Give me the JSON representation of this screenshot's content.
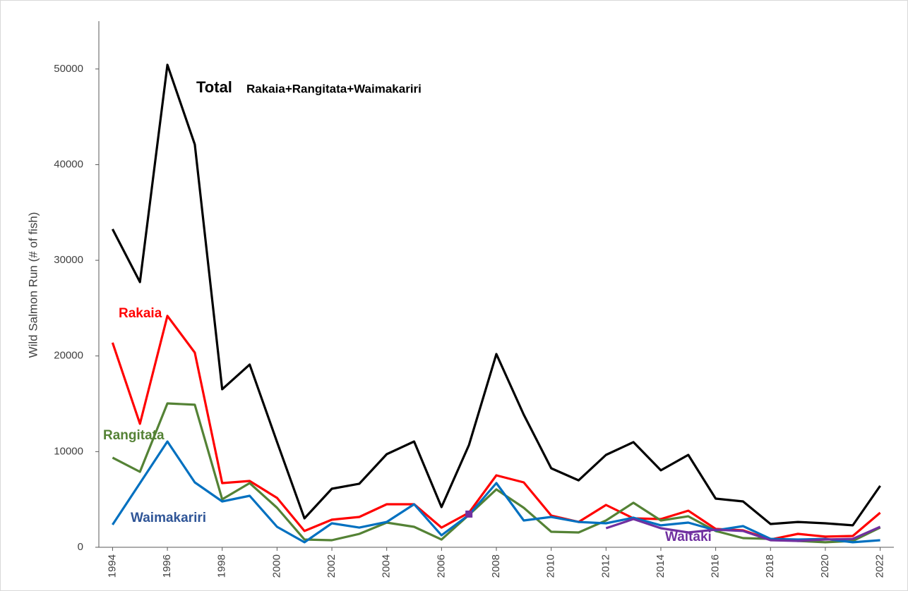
{
  "chart_data": {
    "type": "line",
    "y_label": "Wild Salmon Run (# of fish)",
    "annotations": [
      "Rakaia+Rangitata+Waimakariri"
    ],
    "x": [
      1994,
      1995,
      1996,
      1997,
      1998,
      1999,
      2000,
      2001,
      2002,
      2003,
      2004,
      2005,
      2006,
      2007,
      2008,
      2009,
      2010,
      2011,
      2012,
      2013,
      2014,
      2015,
      2016,
      2017,
      2018,
      2019,
      2020,
      2021,
      2022
    ],
    "xlim": [
      1993.5,
      2022.5
    ],
    "xticks": [
      1994,
      1996,
      1998,
      2000,
      2002,
      2004,
      2006,
      2008,
      2010,
      2012,
      2014,
      2016,
      2018,
      2020,
      2022
    ],
    "ylim": [
      0,
      55000
    ],
    "yticks": [
      0,
      10000,
      20000,
      30000,
      40000,
      50000
    ],
    "grid": false,
    "series": [
      {
        "name": "Total",
        "color": "#000000",
        "values": [
          33260,
          27730,
          50440,
          42110,
          16520,
          19100,
          11000,
          3020,
          6120,
          6640,
          9730,
          11060,
          4200,
          10690,
          20200,
          13860,
          8260,
          7000,
          9660,
          10990,
          8040,
          9660,
          5090,
          4790,
          2430,
          2650,
          2510,
          2290,
          6420
        ]
      },
      {
        "name": "Rakaia",
        "color": "#ff0000",
        "values": [
          21390,
          12910,
          24190,
          20350,
          6710,
          6930,
          5160,
          1700,
          2880,
          3170,
          4500,
          4500,
          2060,
          3610,
          7520,
          6780,
          3320,
          2650,
          4420,
          3020,
          2950,
          3830,
          1920,
          1770,
          810,
          1400,
          1110,
          1180,
          3610
        ]
      },
      {
        "name": "Rangitata",
        "color": "#548235",
        "values": [
          9370,
          7890,
          15040,
          14900,
          5010,
          6710,
          4130,
          810,
          740,
          1400,
          2580,
          2140,
          810,
          3390,
          6050,
          4130,
          1620,
          1550,
          2800,
          4650,
          2800,
          3240,
          1700,
          960,
          880,
          660,
          520,
          660,
          2060
        ]
      },
      {
        "name": "Waimakariri",
        "color": "#0070c0",
        "values": [
          2360,
          6700,
          11060,
          6780,
          4790,
          5380,
          2140,
          520,
          2510,
          2060,
          2650,
          4500,
          1250,
          3390,
          6710,
          2800,
          3170,
          2650,
          2510,
          3100,
          2290,
          2580,
          1770,
          2210,
          880,
          810,
          880,
          520,
          740
        ]
      },
      {
        "name": "Waitaki",
        "color": "#7030a0",
        "values": [
          null,
          null,
          null,
          null,
          null,
          null,
          null,
          null,
          null,
          null,
          null,
          null,
          null,
          3470,
          null,
          null,
          null,
          null,
          1990,
          2950,
          1990,
          1550,
          1840,
          1700,
          740,
          660,
          810,
          880,
          2140
        ]
      }
    ]
  }
}
